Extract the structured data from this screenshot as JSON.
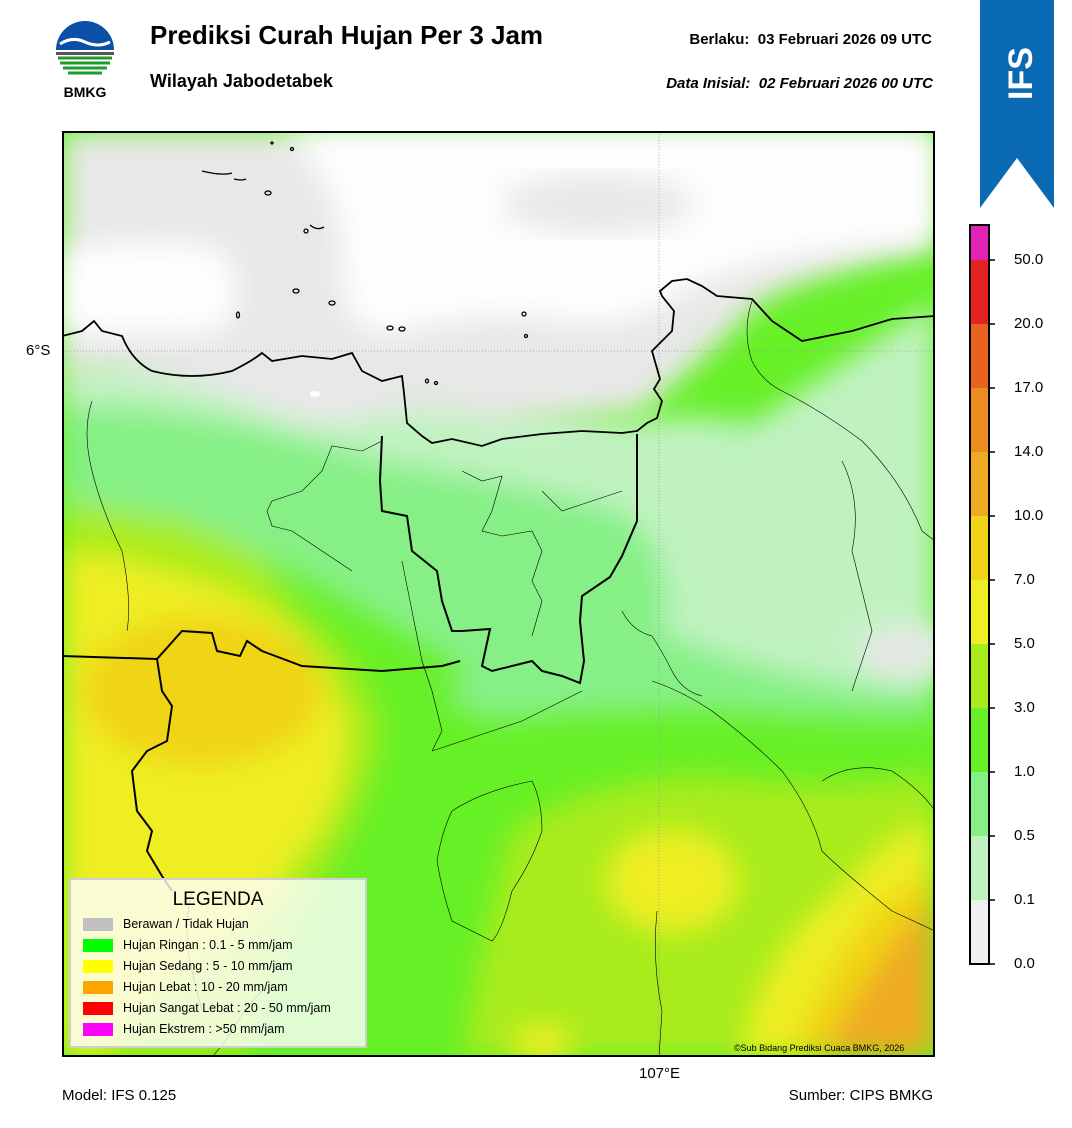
{
  "header": {
    "title": "Prediksi Curah Hujan Per 3 Jam",
    "subtitle": "Wilayah Jabodetabek",
    "valid_label": "Berlaku:",
    "valid_time": "03 Februari 2026 09 UTC",
    "init_label": "Data Inisial:",
    "init_time": "02 Februari 2026 00 UTC"
  },
  "logo": {
    "text": "BMKG",
    "icon": "bmkg-logo-icon"
  },
  "badge": {
    "text": "IFS",
    "color": "#0a69b3"
  },
  "map": {
    "lat_label": "6°S",
    "lon_label": "107°E",
    "copyright": "©Sub Bidang Prediksi Cuaca BMKG, 2026"
  },
  "footer": {
    "model": "Model: IFS 0.125",
    "source": "Sumber: CIPS BMKG"
  },
  "colorbar": {
    "ticks": [
      "0.0",
      "0.1",
      "0.5",
      "1.0",
      "3.0",
      "5.0",
      "7.0",
      "10.0",
      "14.0",
      "17.0",
      "20.0",
      "50.0"
    ],
    "colors": [
      "#f0f0f0",
      "#c0f2c0",
      "#86f086",
      "#66f026",
      "#a8ec1e",
      "#eeee22",
      "#f0d418",
      "#eeaa20",
      "#ec8c20",
      "#e86220",
      "#e42222",
      "#e222b4"
    ]
  },
  "legend": {
    "title": "LEGENDA",
    "items": [
      {
        "label": "Berawan / Tidak Hujan",
        "color": "#c0c0c0"
      },
      {
        "label": "Hujan Ringan : 0.1 - 5 mm/jam",
        "color": "#00ff00"
      },
      {
        "label": "Hujan Sedang : 5 - 10 mm/jam",
        "color": "#ffff00"
      },
      {
        "label": "Hujan Lebat : 10 - 20 mm/jam",
        "color": "#ffa500"
      },
      {
        "label": "Hujan Sangat Lebat : 20 - 50 mm/jam",
        "color": "#ff0000"
      },
      {
        "label": "Hujan Ekstrem : >50 mm/jam",
        "color": "#ff00ff"
      }
    ]
  }
}
